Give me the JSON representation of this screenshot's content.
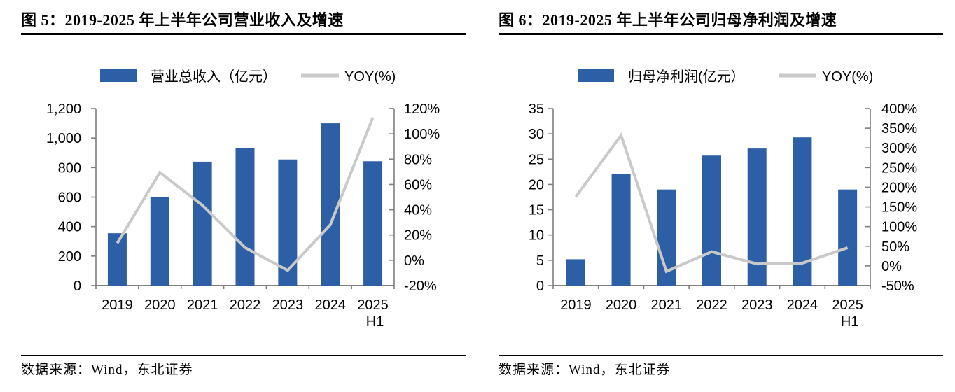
{
  "page": {
    "background": "#FFFFFF"
  },
  "colors": {
    "axis": "#7F7F7F",
    "bar": "#2D5FA6",
    "line": "#C9C9C9",
    "text": "#000000",
    "rule": "#000000"
  },
  "chart_data": [
    {
      "type": "bar",
      "title": "图 5：2019-2025 年上半年公司营业收入及增速",
      "source": "数据来源：Wind，东北证券",
      "legend_position": "top",
      "grid": false,
      "categories": [
        "2019",
        "2020",
        "2021",
        "2022",
        "2023",
        "2024",
        "2025"
      ],
      "categories_line2": [
        "",
        "",
        "",
        "",
        "",
        "",
        "H1"
      ],
      "series": [
        {
          "name": "营业总收入（亿元）",
          "type": "bar",
          "axis": "left",
          "color": "#2D5FA6",
          "values": [
            355,
            600,
            840,
            930,
            855,
            1100,
            843
          ]
        },
        {
          "name": "YOY(%)",
          "type": "line",
          "axis": "right",
          "color": "#C9C9C9",
          "values": [
            13.5,
            69.5,
            43.5,
            10,
            -8,
            28,
            113
          ]
        }
      ],
      "left_axis": {
        "min": 0,
        "max": 1200,
        "step": 200,
        "tick_labels": [
          "0",
          "200",
          "400",
          "600",
          "800",
          "1,000",
          "1,200"
        ]
      },
      "right_axis": {
        "min": -20,
        "max": 120,
        "step": 20,
        "tick_labels": [
          "-20%",
          "0%",
          "20%",
          "40%",
          "60%",
          "80%",
          "100%",
          "120%"
        ]
      }
    },
    {
      "type": "bar",
      "title": "图 6：2019-2025 年上半年公司归母净利润及增速",
      "source": "数据来源：Wind，东北证券",
      "legend_position": "top",
      "grid": false,
      "categories": [
        "2019",
        "2020",
        "2021",
        "2022",
        "2023",
        "2024",
        "2025"
      ],
      "categories_line2": [
        "",
        "",
        "",
        "",
        "",
        "",
        "H1"
      ],
      "series": [
        {
          "name": "归母净利润(亿元）",
          "type": "bar",
          "axis": "left",
          "color": "#2D5FA6",
          "values": [
            5.2,
            22,
            19,
            25.7,
            27.1,
            29.3,
            19
          ]
        },
        {
          "name": "YOY(%)",
          "type": "line",
          "axis": "right",
          "color": "#C9C9C9",
          "values": [
            176,
            332,
            -14,
            36,
            5,
            7,
            46
          ]
        }
      ],
      "left_axis": {
        "min": 0,
        "max": 35,
        "step": 5,
        "tick_labels": [
          "0",
          "5",
          "10",
          "15",
          "20",
          "25",
          "30",
          "35"
        ]
      },
      "right_axis": {
        "min": -50,
        "max": 400,
        "step": 50,
        "tick_labels": [
          "-50%",
          "0%",
          "50%",
          "100%",
          "150%",
          "200%",
          "250%",
          "300%",
          "350%",
          "400%"
        ]
      }
    }
  ]
}
